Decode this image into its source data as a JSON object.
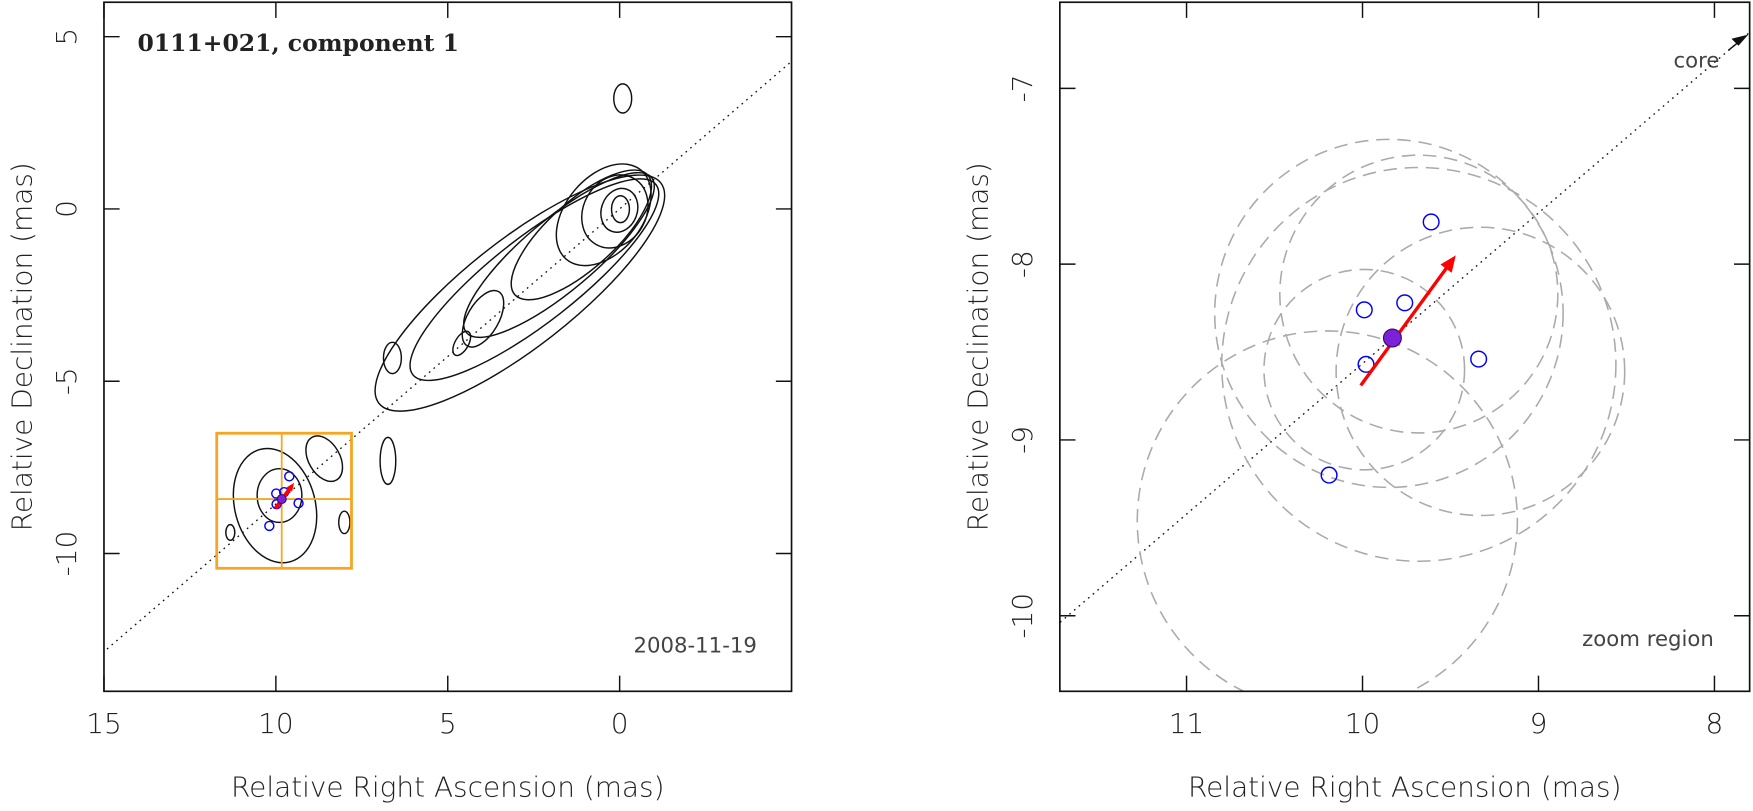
{
  "chart_data": [
    {
      "type": "scatter",
      "title": "0111+021, component 1",
      "date": "2008-11-19",
      "x_label": "Relative Right Ascension (mas)",
      "y_label": "Relative Declination (mas)",
      "xlim": [
        15,
        -5
      ],
      "ylim": [
        -14,
        6
      ],
      "xticks": [
        15,
        10,
        5,
        0
      ],
      "yticks": [
        5,
        0,
        -5,
        -10
      ],
      "core": {
        "x": 0,
        "y": 0
      },
      "points": {
        "color": "#0000ff",
        "x": [
          9.61,
          9.76,
          9.99,
          9.98,
          9.34,
          10.19
        ],
        "y": [
          -7.76,
          -8.22,
          -8.26,
          -8.57,
          -8.54,
          -9.2
        ]
      },
      "component": {
        "color": "#7b22d6",
        "x": 9.83,
        "y": -8.42
      },
      "arrow": {
        "color": "#ff0000",
        "x": [
          10.01,
          9.47
        ],
        "y": [
          -8.69,
          -7.95
        ]
      },
      "zoom_box": {
        "color": "#f5a623",
        "xlim": [
          11.72,
          7.8
        ],
        "ylim": [
          -10.43,
          -6.51
        ]
      }
    },
    {
      "type": "scatter",
      "core_label": "core",
      "zoom_label": "zoom region",
      "x_label": "Relative Right Ascension (mas)",
      "y_label": "Relative Declination (mas)",
      "xlim": [
        11.72,
        7.8
      ],
      "ylim": [
        -10.43,
        -6.51
      ],
      "xticks": [
        11,
        10,
        9,
        8
      ],
      "yticks": [
        -7,
        -8,
        -9,
        -10
      ],
      "core": {
        "x": 0,
        "y": 0
      },
      "points": {
        "color": "#0000ff",
        "x": [
          9.61,
          9.76,
          9.99,
          9.98,
          9.34,
          10.19
        ],
        "y": [
          -7.76,
          -8.22,
          -8.26,
          -8.57,
          -8.54,
          -9.2
        ]
      },
      "component": {
        "color": "#7b22d6",
        "x": 9.83,
        "y": -8.42
      },
      "arrow": {
        "color": "#ff0000",
        "x": [
          10.01,
          9.47
        ],
        "y": [
          -8.69,
          -7.95
        ]
      },
      "error_circles": {
        "color": "#aaaaaa",
        "x": [
          10.2,
          9.68,
          9.85,
          9.33,
          9.99,
          9.68
        ],
        "y": [
          -9.46,
          -8.57,
          -8.28,
          -8.61,
          -8.6,
          -8.17
        ],
        "r": [
          1.08,
          1.12,
          0.99,
          0.82,
          0.57,
          0.79
        ]
      }
    }
  ]
}
